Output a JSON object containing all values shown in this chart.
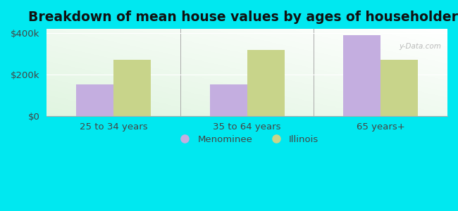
{
  "title": "Breakdown of mean house values by ages of householders",
  "categories": [
    "25 to 34 years",
    "35 to 64 years",
    "65 years+"
  ],
  "menominee_values": [
    150000,
    150000,
    390000
  ],
  "illinois_values": [
    270000,
    320000,
    270000
  ],
  "menominee_color": "#c4aee0",
  "illinois_color": "#c8d48a",
  "background_outer": "#00e8f0",
  "ylim": [
    0,
    420000
  ],
  "ytick_labels": [
    "$0",
    "$200k",
    "$400k"
  ],
  "ytick_vals": [
    0,
    200000,
    400000
  ],
  "bar_width": 0.28,
  "legend_labels": [
    "Menominee",
    "Illinois"
  ],
  "watermark": "y-Data.com",
  "title_fontsize": 13.5,
  "tick_fontsize": 9.5,
  "legend_fontsize": 9.5
}
